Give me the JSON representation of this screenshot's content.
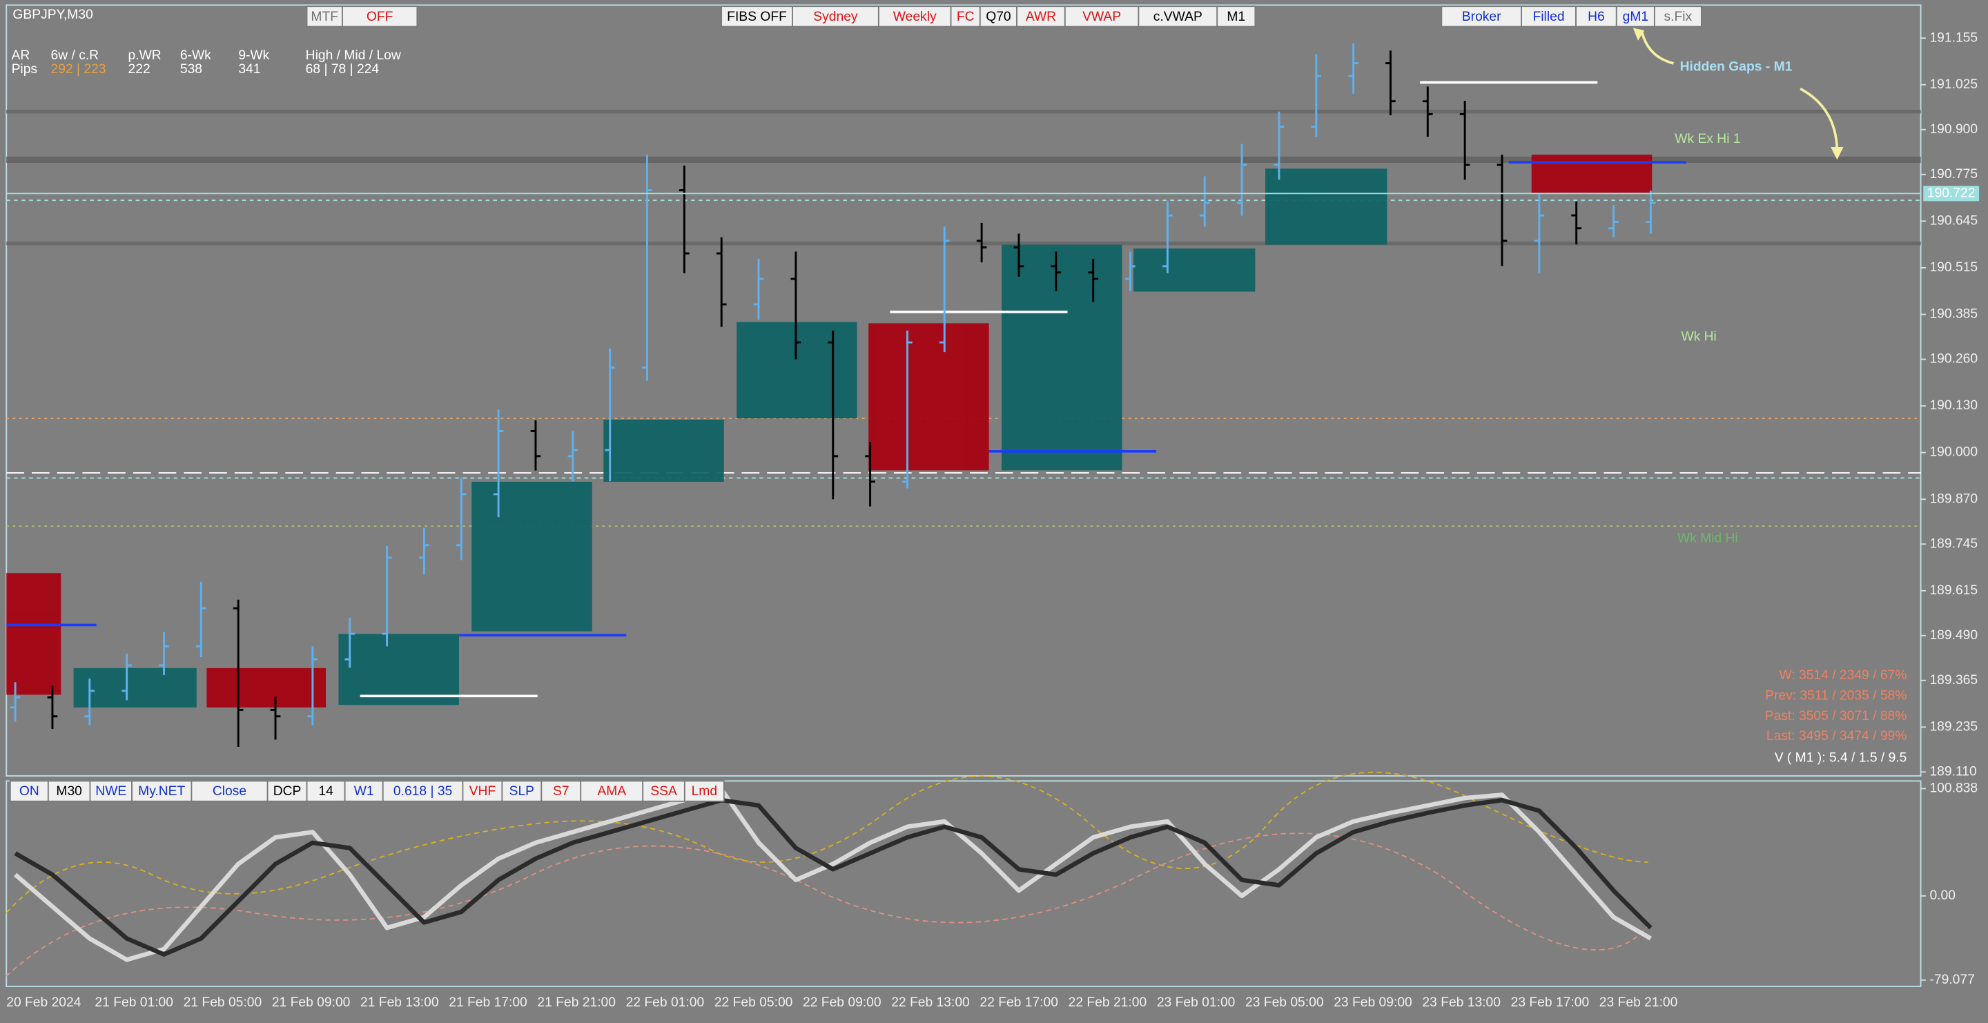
{
  "chart_data": [
    {
      "type": "ohlc",
      "title": "GBPJPY,M30",
      "open": [
        189.29,
        189.318,
        189.265,
        189.336,
        189.407,
        189.46,
        189.566,
        189.283,
        189.265,
        189.424,
        189.495,
        189.707,
        189.742,
        189.884,
        190.06,
        189.99,
        190.007,
        190.237,
        190.731,
        190.555,
        190.413,
        190.484,
        190.307,
        189.99,
        189.919,
        190.307,
        190.59,
        190.572,
        190.519,
        190.502,
        190.484,
        190.519,
        190.661,
        190.696,
        190.802,
        190.908,
        191.049,
        191.085,
        190.979,
        190.943,
        190.802,
        190.59,
        190.661,
        190.625,
        190.643
      ],
      "high": [
        189.36,
        189.35,
        189.37,
        189.44,
        189.5,
        189.64,
        189.59,
        189.32,
        189.46,
        189.54,
        189.74,
        189.79,
        189.93,
        190.12,
        190.09,
        190.06,
        190.29,
        190.83,
        190.8,
        190.6,
        190.54,
        190.56,
        190.34,
        190.03,
        190.34,
        190.63,
        190.64,
        190.61,
        190.56,
        190.54,
        190.56,
        190.7,
        190.77,
        190.86,
        190.95,
        191.11,
        191.14,
        191.12,
        191.02,
        190.98,
        190.83,
        190.72,
        190.7,
        190.69,
        190.73
      ],
      "low": [
        189.25,
        189.23,
        189.24,
        189.31,
        189.38,
        189.43,
        189.18,
        189.2,
        189.24,
        189.4,
        189.46,
        189.66,
        189.7,
        189.82,
        189.95,
        189.92,
        189.92,
        190.2,
        190.5,
        190.35,
        190.37,
        190.26,
        189.87,
        189.85,
        189.9,
        190.28,
        190.53,
        190.49,
        190.45,
        190.42,
        190.45,
        190.5,
        190.63,
        190.66,
        190.76,
        190.88,
        191.0,
        190.94,
        190.88,
        190.76,
        190.52,
        190.5,
        190.58,
        190.6,
        190.61
      ],
      "close": [
        189.318,
        189.265,
        189.336,
        189.407,
        189.46,
        189.566,
        189.283,
        189.265,
        189.424,
        189.495,
        189.707,
        189.742,
        189.884,
        190.06,
        189.99,
        190.007,
        190.237,
        190.731,
        190.555,
        190.413,
        190.484,
        190.307,
        189.99,
        189.919,
        190.307,
        190.59,
        190.572,
        190.519,
        190.502,
        190.484,
        190.519,
        190.661,
        190.696,
        190.802,
        190.908,
        191.049,
        191.085,
        190.979,
        190.943,
        190.802,
        190.59,
        190.661,
        190.625,
        190.643,
        190.696
      ],
      "up_color": "#5fb0ee",
      "down_color": "#000000",
      "ylim": [
        189.099,
        191.247
      ],
      "yticks": [
        191.155,
        191.025,
        {
          "value": 190.9,
          "label": "190.900"
        },
        190.775,
        190.645,
        190.515,
        190.385,
        {
          "value": 190.26,
          "label": "190.260"
        },
        {
          "value": 190.13,
          "label": "190.130"
        },
        {
          "value": 190.0,
          "label": "190.000"
        },
        {
          "value": 189.87,
          "label": "189.870"
        },
        189.745,
        189.615,
        {
          "value": 189.49,
          "label": "189.490"
        },
        189.365,
        189.235,
        {
          "value": 189.11,
          "label": "189.110"
        }
      ],
      "current_price": 190.722,
      "x_labels": [
        "20 Feb 2024",
        "21 Feb 01:00",
        "21 Feb 05:00",
        "21 Feb 09:00",
        "21 Feb 13:00",
        "21 Feb 17:00",
        "21 Feb 21:00",
        "22 Feb 01:00",
        "22 Feb 05:00",
        "22 Feb 09:00",
        "22 Feb 13:00",
        "22 Feb 17:00",
        "22 Feb 21:00",
        "23 Feb 01:00",
        "23 Feb 05:00",
        "23 Feb 09:00",
        "23 Feb 13:00",
        "23 Feb 17:00",
        "23 Feb 21:00"
      ]
    },
    {
      "type": "line",
      "series": [
        {
          "color": "#d9d9d9",
          "values": [
            20,
            -10,
            -40,
            -60,
            -50,
            -10,
            30,
            55,
            60,
            20,
            -30,
            -20,
            10,
            35,
            50,
            60,
            70,
            80,
            90,
            100,
            50,
            15,
            30,
            50,
            65,
            70,
            40,
            5,
            30,
            55,
            65,
            70,
            30,
            0,
            25,
            55,
            70,
            78,
            85,
            92,
            95,
            60,
            20,
            -20,
            -40
          ]
        },
        {
          "color": "#2b2b2b",
          "values": [
            40,
            20,
            -10,
            -40,
            -55,
            -40,
            -5,
            30,
            50,
            45,
            10,
            -25,
            -15,
            15,
            35,
            50,
            60,
            70,
            80,
            90,
            85,
            45,
            25,
            40,
            55,
            65,
            55,
            25,
            20,
            40,
            55,
            65,
            50,
            15,
            10,
            40,
            60,
            70,
            78,
            85,
            90,
            80,
            45,
            5,
            -30
          ]
        }
      ],
      "ylim": [
        -85,
        108
      ],
      "yticks": [
        100.838,
        {
          "value": 0,
          "label": "0.00"
        },
        -79.077
      ]
    }
  ],
  "toolbar_top_left": [
    "MTF",
    "OFF"
  ],
  "toolbar_top_center": [
    "FIBS OFF",
    "Sydney",
    "Weekly",
    "FC",
    "Q70",
    "AWR",
    "VWAP",
    "c.VWAP",
    "M1"
  ],
  "toolbar_top_right": [
    "Broker",
    "Filled",
    "H6",
    "gM1",
    "s.Fix"
  ],
  "toolbar_bottom": [
    "ON",
    "M30",
    "NWE",
    "My.NET",
    "Close",
    "DCP",
    "14",
    "W1",
    "0.618 | 35",
    "VHF",
    "SLP",
    "S7",
    "AMA",
    "SSA",
    "Lmd"
  ],
  "stats_table": [
    [
      "AR",
      "6w / c.R",
      "p.WR",
      "6-Wk",
      "9-Wk",
      "High / Mid / Low"
    ],
    [
      "Pips",
      "292 | 223",
      "222",
      "538",
      "341",
      "68 | 78 | 224"
    ]
  ],
  "annotation": "Hidden Gaps - M1",
  "level_labels": [
    "Wk Ex Hi 1",
    "Wk Hi",
    "Wk Mid Hi"
  ],
  "range_stats": [
    "W: 3514 / 2349 / 67%",
    "Prev: 3511 / 2035 / 58%",
    "Past: 3505 / 3071 / 88%",
    "Last: 3495 / 3474 / 99%"
  ],
  "volatility": "V ( M1 ): 5.4 / 1.5 / 9.5"
}
